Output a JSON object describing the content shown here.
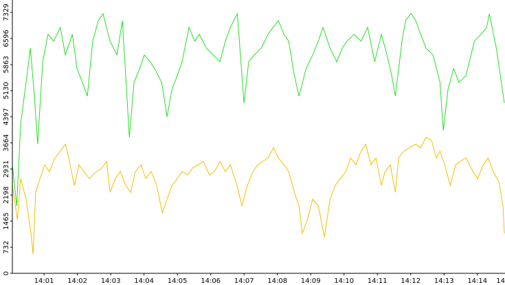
{
  "chart_data": {
    "type": "line",
    "xlim": [
      0.05,
      14.83
    ],
    "xticks": [
      {
        "value": 1,
        "label": "14:01"
      },
      {
        "value": 2,
        "label": "14:02"
      },
      {
        "value": 3,
        "label": "14:03"
      },
      {
        "value": 4,
        "label": "14:04"
      },
      {
        "value": 5,
        "label": "14:05"
      },
      {
        "value": 6,
        "label": "14:06"
      },
      {
        "value": 7,
        "label": "14:07"
      },
      {
        "value": 8,
        "label": "14:08"
      },
      {
        "value": 9,
        "label": "14:09"
      },
      {
        "value": 10,
        "label": "14:10"
      },
      {
        "value": 11,
        "label": "14:11"
      },
      {
        "value": 12,
        "label": "14:12"
      },
      {
        "value": 13,
        "label": "14:13"
      },
      {
        "value": 14,
        "label": "14:14"
      },
      {
        "value": 15,
        "label": "14"
      }
    ],
    "ylim": [
      0,
      7329
    ],
    "yticks": [
      0,
      732,
      1465,
      2198,
      2931,
      3664,
      4397,
      5130,
      5863,
      6596,
      7329
    ],
    "series": [
      {
        "color": "#22e022",
        "x": [
          0.05,
          0.18,
          0.3,
          0.46,
          0.59,
          0.71,
          0.81,
          0.96,
          1.12,
          1.29,
          1.49,
          1.64,
          1.85,
          1.99,
          2.15,
          2.3,
          2.46,
          2.63,
          2.77,
          2.98,
          3.19,
          3.35,
          3.45,
          3.56,
          3.7,
          3.87,
          4.01,
          4.18,
          4.32,
          4.53,
          4.69,
          4.84,
          5.0,
          5.14,
          5.35,
          5.52,
          5.66,
          5.87,
          6.07,
          6.28,
          6.44,
          6.59,
          6.8,
          7.0,
          7.14,
          7.31,
          7.52,
          7.72,
          7.87,
          8.03,
          8.2,
          8.34,
          8.51,
          8.65,
          8.86,
          9.06,
          9.23,
          9.37,
          9.58,
          9.78,
          9.95,
          10.09,
          10.3,
          10.51,
          10.71,
          10.92,
          11.12,
          11.29,
          11.43,
          11.54,
          11.74,
          11.85,
          12.01,
          12.15,
          12.3,
          12.46,
          12.67,
          12.88,
          12.98,
          13.12,
          13.29,
          13.45,
          13.66,
          13.91,
          14.11,
          14.28,
          14.36,
          14.57,
          14.69,
          14.81
        ],
        "values": [
          3048,
          1891,
          4205,
          5363,
          6327,
          4977,
          3627,
          5941,
          6713,
          6520,
          6906,
          6134,
          6713,
          5748,
          5363,
          4977,
          6520,
          7099,
          7292,
          6520,
          6134,
          7099,
          5556,
          3819,
          5363,
          5748,
          6134,
          5941,
          5748,
          5363,
          4398,
          5170,
          5556,
          5941,
          6906,
          6520,
          6713,
          6327,
          6134,
          5941,
          6520,
          6906,
          7292,
          4784,
          5941,
          6134,
          6327,
          6713,
          6906,
          7099,
          6713,
          6520,
          5556,
          4977,
          5748,
          6134,
          6520,
          6906,
          6327,
          5941,
          6327,
          6520,
          6713,
          6520,
          6906,
          5941,
          6713,
          6134,
          5556,
          4977,
          6520,
          7099,
          7300,
          7099,
          6713,
          6327,
          6134,
          5363,
          4012,
          5170,
          5748,
          5363,
          5556,
          6520,
          6713,
          6906,
          7292,
          6327,
          5556,
          4784
        ]
      },
      {
        "color": "#f5bd00",
        "x": [
          0.05,
          0.2,
          0.3,
          0.46,
          0.61,
          0.67,
          0.75,
          0.88,
          1.02,
          1.16,
          1.33,
          1.49,
          1.64,
          1.74,
          1.91,
          2.05,
          2.2,
          2.36,
          2.57,
          2.73,
          2.88,
          2.98,
          3.14,
          3.29,
          3.45,
          3.6,
          3.74,
          3.91,
          4.05,
          4.22,
          4.38,
          4.55,
          4.69,
          4.84,
          5.0,
          5.14,
          5.31,
          5.45,
          5.62,
          5.78,
          5.97,
          6.11,
          6.28,
          6.44,
          6.59,
          6.79,
          6.94,
          7.1,
          7.27,
          7.41,
          7.56,
          7.72,
          7.89,
          8.03,
          8.2,
          8.34,
          8.51,
          8.65,
          8.75,
          8.9,
          9.06,
          9.23,
          9.41,
          9.58,
          9.74,
          9.89,
          10.05,
          10.2,
          10.36,
          10.51,
          10.65,
          10.81,
          10.96,
          11.12,
          11.23,
          11.39,
          11.54,
          11.64,
          11.8,
          11.97,
          12.15,
          12.3,
          12.46,
          12.63,
          12.77,
          12.88,
          13.02,
          13.19,
          13.35,
          13.49,
          13.66,
          13.87,
          14.01,
          14.18,
          14.32,
          14.48,
          14.65,
          14.77,
          14.81
        ],
        "values": [
          2469,
          1505,
          2662,
          2083,
          1119,
          540,
          2276,
          2662,
          3048,
          2855,
          3241,
          3434,
          3627,
          3241,
          2469,
          3048,
          2855,
          2662,
          2855,
          2951,
          3144,
          2276,
          2662,
          2855,
          2469,
          2276,
          2855,
          3048,
          2662,
          2855,
          2469,
          1698,
          2083,
          2469,
          2662,
          2855,
          2758,
          2951,
          3048,
          3144,
          2758,
          2855,
          3144,
          2855,
          3048,
          2469,
          1890,
          2469,
          2855,
          3048,
          3144,
          3241,
          3530,
          3241,
          3048,
          2855,
          2276,
          1890,
          1119,
          1505,
          2083,
          1890,
          1022,
          2083,
          2469,
          2662,
          2855,
          3241,
          3048,
          3434,
          3627,
          3048,
          3241,
          2469,
          2855,
          3048,
          2276,
          3241,
          3434,
          3530,
          3627,
          3530,
          3819,
          3723,
          3241,
          3434,
          3048,
          2469,
          3048,
          3144,
          3241,
          2855,
          2662,
          3048,
          3241,
          2855,
          2566,
          1890,
          1119
        ]
      }
    ]
  }
}
